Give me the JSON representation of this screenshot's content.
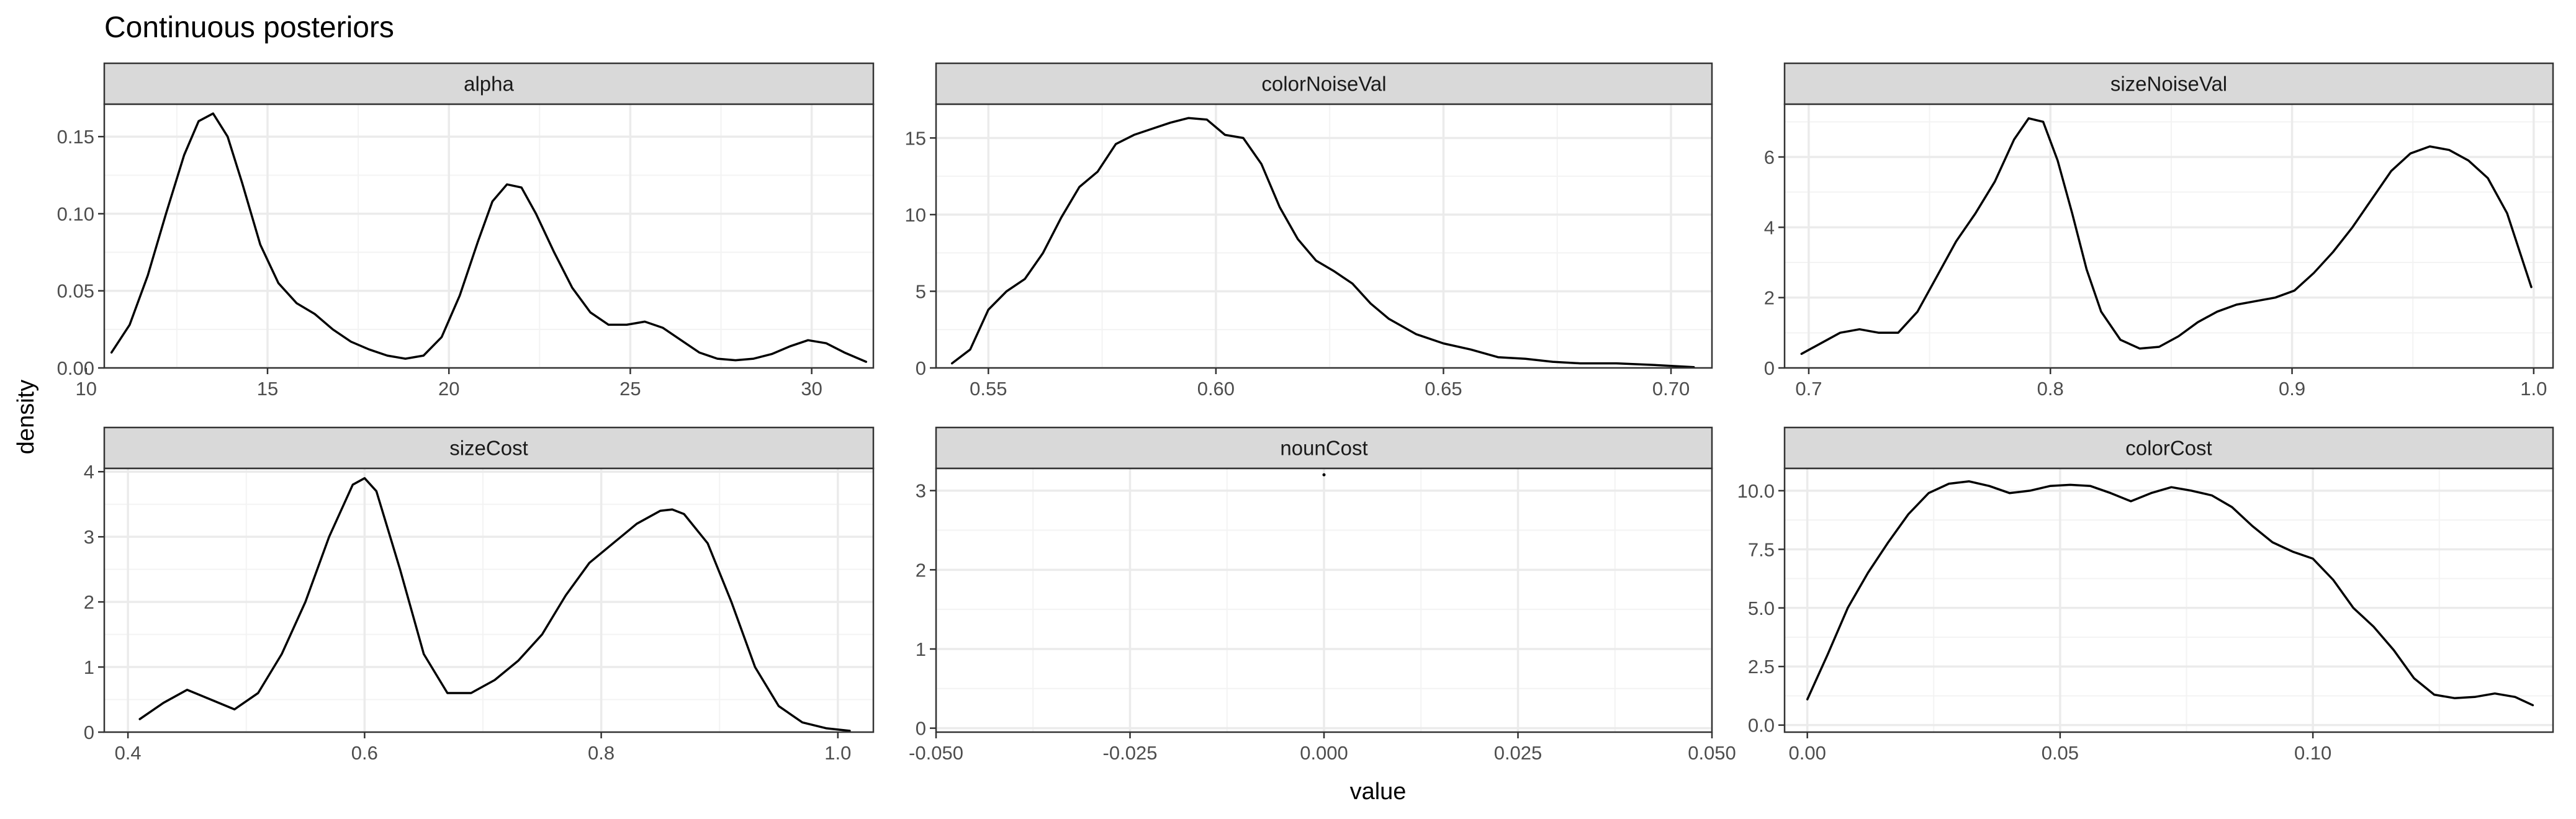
{
  "chart_data": {
    "type": "line",
    "title": "Continuous posteriors",
    "xlabel": "value",
    "ylabel": "density",
    "grid": true,
    "legend": "none",
    "facets": [
      {
        "name": "alpha",
        "xlim": [
          10.5,
          31.7
        ],
        "ylim": [
          0,
          0.171
        ],
        "xticks": [
          {
            "v": 10,
            "label": "10"
          },
          {
            "v": 15,
            "label": "15"
          },
          {
            "v": 20,
            "label": "20"
          },
          {
            "v": 25,
            "label": "25"
          },
          {
            "v": 30,
            "label": "30"
          }
        ],
        "yticks": [
          {
            "v": 0,
            "label": "0.00"
          },
          {
            "v": 0.05,
            "label": "0.05"
          },
          {
            "v": 0.1,
            "label": "0.10"
          },
          {
            "v": 0.15,
            "label": "0.15"
          }
        ],
        "x": [
          10.7,
          11.2,
          11.7,
          12.2,
          12.7,
          13.1,
          13.5,
          13.9,
          14.3,
          14.8,
          15.3,
          15.8,
          16.3,
          16.8,
          17.3,
          17.8,
          18.3,
          18.8,
          19.3,
          19.8,
          20.3,
          20.8,
          21.2,
          21.6,
          22.0,
          22.4,
          22.9,
          23.4,
          23.9,
          24.4,
          24.9,
          25.4,
          25.9,
          26.4,
          26.9,
          27.4,
          27.9,
          28.4,
          28.9,
          29.4,
          29.9,
          30.4,
          30.9,
          31.5
        ],
        "y": [
          0.01,
          0.028,
          0.06,
          0.1,
          0.138,
          0.16,
          0.165,
          0.15,
          0.12,
          0.08,
          0.055,
          0.042,
          0.035,
          0.025,
          0.017,
          0.012,
          0.008,
          0.006,
          0.008,
          0.02,
          0.047,
          0.082,
          0.108,
          0.119,
          0.117,
          0.1,
          0.075,
          0.052,
          0.036,
          0.028,
          0.028,
          0.03,
          0.026,
          0.018,
          0.01,
          0.006,
          0.005,
          0.006,
          0.009,
          0.014,
          0.018,
          0.016,
          0.01,
          0.004
        ]
      },
      {
        "name": "colorNoiseVal",
        "xlim": [
          0.5385,
          0.709
        ],
        "ylim": [
          0,
          17.2
        ],
        "xticks": [
          {
            "v": 0.55,
            "label": "0.55"
          },
          {
            "v": 0.6,
            "label": "0.60"
          },
          {
            "v": 0.65,
            "label": "0.65"
          },
          {
            "v": 0.7,
            "label": "0.70"
          }
        ],
        "yticks": [
          {
            "v": 0,
            "label": "0"
          },
          {
            "v": 5,
            "label": "5"
          },
          {
            "v": 10,
            "label": "10"
          },
          {
            "v": 15,
            "label": "15"
          }
        ],
        "x": [
          0.542,
          0.546,
          0.55,
          0.554,
          0.558,
          0.562,
          0.566,
          0.57,
          0.574,
          0.578,
          0.582,
          0.586,
          0.59,
          0.594,
          0.598,
          0.602,
          0.606,
          0.61,
          0.614,
          0.618,
          0.622,
          0.626,
          0.63,
          0.634,
          0.638,
          0.644,
          0.65,
          0.656,
          0.662,
          0.668,
          0.674,
          0.68,
          0.688,
          0.696,
          0.705
        ],
        "y": [
          0.3,
          1.2,
          3.8,
          5.0,
          5.8,
          7.5,
          9.8,
          11.8,
          12.8,
          14.6,
          15.2,
          15.6,
          16.0,
          16.3,
          16.2,
          15.2,
          15.0,
          13.3,
          10.5,
          8.4,
          7.0,
          6.3,
          5.5,
          4.2,
          3.2,
          2.2,
          1.6,
          1.2,
          0.7,
          0.6,
          0.4,
          0.3,
          0.3,
          0.2,
          0.05
        ]
      },
      {
        "name": "sizeNoiseVal",
        "xlim": [
          0.69,
          1.008
        ],
        "ylim": [
          0,
          7.5
        ],
        "xticks": [
          {
            "v": 0.7,
            "label": "0.7"
          },
          {
            "v": 0.8,
            "label": "0.8"
          },
          {
            "v": 0.9,
            "label": "0.9"
          },
          {
            "v": 1.0,
            "label": "1.0"
          }
        ],
        "yticks": [
          {
            "v": 0,
            "label": "0"
          },
          {
            "v": 2,
            "label": "2"
          },
          {
            "v": 4,
            "label": "4"
          },
          {
            "v": 6,
            "label": "6"
          }
        ],
        "x": [
          0.697,
          0.705,
          0.713,
          0.721,
          0.729,
          0.737,
          0.745,
          0.753,
          0.761,
          0.769,
          0.777,
          0.785,
          0.791,
          0.797,
          0.803,
          0.809,
          0.815,
          0.821,
          0.829,
          0.837,
          0.845,
          0.853,
          0.861,
          0.869,
          0.877,
          0.885,
          0.893,
          0.901,
          0.909,
          0.917,
          0.925,
          0.933,
          0.941,
          0.949,
          0.957,
          0.965,
          0.973,
          0.981,
          0.989,
          0.999
        ],
        "y": [
          0.4,
          0.7,
          1.0,
          1.1,
          1.0,
          1.0,
          1.6,
          2.6,
          3.6,
          4.4,
          5.3,
          6.5,
          7.1,
          7.0,
          5.9,
          4.4,
          2.8,
          1.6,
          0.8,
          0.55,
          0.6,
          0.9,
          1.3,
          1.6,
          1.8,
          1.9,
          2.0,
          2.2,
          2.7,
          3.3,
          4.0,
          4.8,
          5.6,
          6.1,
          6.3,
          6.2,
          5.9,
          5.4,
          4.4,
          2.3
        ]
      },
      {
        "name": "sizeCost",
        "xlim": [
          0.38,
          1.03
        ],
        "ylim": [
          0,
          4.05
        ],
        "xticks": [
          {
            "v": 0.4,
            "label": "0.4"
          },
          {
            "v": 0.6,
            "label": "0.6"
          },
          {
            "v": 0.8,
            "label": "0.8"
          },
          {
            "v": 1.0,
            "label": "1.0"
          }
        ],
        "yticks": [
          {
            "v": 0,
            "label": "0"
          },
          {
            "v": 1,
            "label": "1"
          },
          {
            "v": 2,
            "label": "2"
          },
          {
            "v": 3,
            "label": "3"
          },
          {
            "v": 4,
            "label": "4"
          }
        ],
        "x": [
          0.41,
          0.43,
          0.45,
          0.47,
          0.49,
          0.51,
          0.53,
          0.55,
          0.57,
          0.59,
          0.6,
          0.61,
          0.63,
          0.65,
          0.67,
          0.69,
          0.71,
          0.73,
          0.75,
          0.77,
          0.79,
          0.81,
          0.83,
          0.85,
          0.86,
          0.87,
          0.89,
          0.91,
          0.93,
          0.95,
          0.97,
          0.99,
          1.01
        ],
        "y": [
          0.2,
          0.45,
          0.65,
          0.5,
          0.35,
          0.6,
          1.2,
          2.0,
          3.0,
          3.8,
          3.9,
          3.7,
          2.5,
          1.2,
          0.6,
          0.6,
          0.8,
          1.1,
          1.5,
          2.1,
          2.6,
          2.9,
          3.2,
          3.4,
          3.42,
          3.35,
          2.9,
          2.0,
          1.0,
          0.4,
          0.15,
          0.06,
          0.02
        ]
      },
      {
        "name": "nounCost",
        "xlim": [
          -0.05,
          0.05
        ],
        "ylim": [
          -0.05,
          3.28
        ],
        "xticks": [
          {
            "v": -0.05,
            "label": "-0.050"
          },
          {
            "v": -0.025,
            "label": "-0.025"
          },
          {
            "v": 0,
            "label": "0.000"
          },
          {
            "v": 0.025,
            "label": "0.025"
          },
          {
            "v": 0.05,
            "label": "0.050"
          }
        ],
        "yticks": [
          {
            "v": 0,
            "label": "0"
          },
          {
            "v": 1,
            "label": "1"
          },
          {
            "v": 2,
            "label": "2"
          },
          {
            "v": 3,
            "label": "3"
          }
        ],
        "x": [
          0.0
        ],
        "y": [
          3.2
        ]
      },
      {
        "name": "colorCost",
        "xlim": [
          -0.0045,
          0.1475
        ],
        "ylim": [
          -0.3,
          10.95
        ],
        "xticks": [
          {
            "v": 0,
            "label": "0.00"
          },
          {
            "v": 0.05,
            "label": "0.05"
          },
          {
            "v": 0.1,
            "label": "0.10"
          }
        ],
        "yticks": [
          {
            "v": 0,
            "label": "0.0"
          },
          {
            "v": 2.5,
            "label": "2.5"
          },
          {
            "v": 5,
            "label": "5.0"
          },
          {
            "v": 7.5,
            "label": "7.5"
          },
          {
            "v": 10,
            "label": "10.0"
          }
        ],
        "x": [
          0.0,
          0.004,
          0.008,
          0.012,
          0.016,
          0.02,
          0.024,
          0.028,
          0.032,
          0.036,
          0.04,
          0.044,
          0.048,
          0.052,
          0.056,
          0.06,
          0.064,
          0.068,
          0.072,
          0.076,
          0.08,
          0.084,
          0.088,
          0.092,
          0.096,
          0.1,
          0.104,
          0.108,
          0.112,
          0.116,
          0.12,
          0.124,
          0.128,
          0.132,
          0.136,
          0.14,
          0.1435
        ],
        "y": [
          1.1,
          3.0,
          5.0,
          6.5,
          7.8,
          9.0,
          9.9,
          10.3,
          10.4,
          10.2,
          9.9,
          10.0,
          10.2,
          10.25,
          10.2,
          9.9,
          9.55,
          9.9,
          10.15,
          10.0,
          9.8,
          9.3,
          8.5,
          7.8,
          7.4,
          7.1,
          6.2,
          5.0,
          4.2,
          3.2,
          2.0,
          1.3,
          1.15,
          1.2,
          1.35,
          1.2,
          0.85
        ]
      }
    ]
  }
}
